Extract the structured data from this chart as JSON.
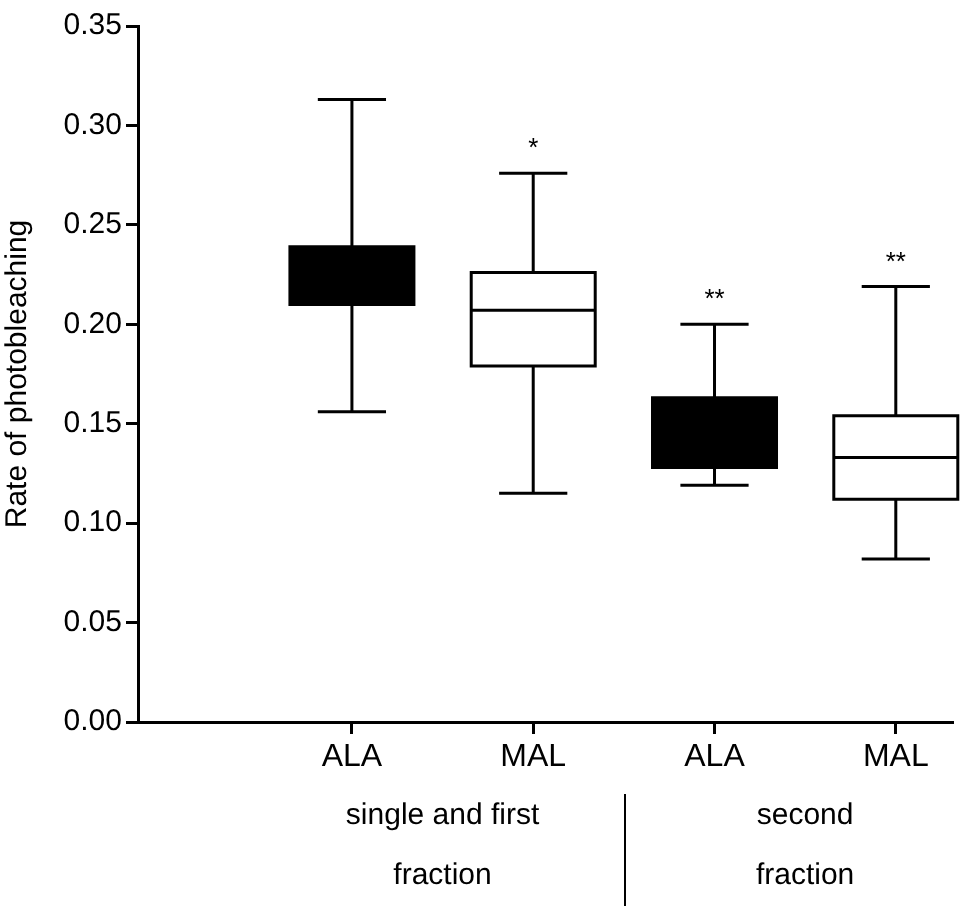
{
  "chart_data": {
    "type": "box",
    "ylabel": "Rate of photobleaching",
    "categories": [
      "ALA",
      "MAL",
      "ALA",
      "MAL"
    ],
    "colors": [
      "#000000",
      "#ffffff",
      "#000000",
      "#ffffff"
    ],
    "boxes": [
      {
        "low": 0.156,
        "q1": 0.21,
        "median": 0.225,
        "q3": 0.239,
        "high": 0.313
      },
      {
        "low": 0.115,
        "q1": 0.179,
        "median": 0.207,
        "q3": 0.226,
        "high": 0.276
      },
      {
        "low": 0.119,
        "q1": 0.128,
        "median": 0.145,
        "q3": 0.163,
        "high": 0.2
      },
      {
        "low": 0.082,
        "q1": 0.112,
        "median": 0.133,
        "q3": 0.154,
        "high": 0.219
      }
    ],
    "ylim": [
      0,
      0.35
    ],
    "yticks": [
      {
        "value": 0,
        "label": "0.00"
      },
      {
        "value": 0.05,
        "label": "0.05"
      },
      {
        "value": 0.1,
        "label": "0.10"
      },
      {
        "value": 0.15,
        "label": "0.15"
      },
      {
        "value": 0.2,
        "label": "0.20"
      },
      {
        "value": 0.25,
        "label": "0.25"
      },
      {
        "value": 0.3,
        "label": "0.30"
      },
      {
        "value": 0.35,
        "label": "0.35"
      }
    ],
    "value_labels": [
      null,
      "*",
      "**",
      "**"
    ],
    "annotations": [
      "single and first fraction",
      "second fraction"
    ]
  }
}
